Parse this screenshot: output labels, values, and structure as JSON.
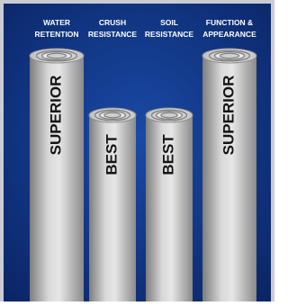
{
  "columns": [
    {
      "header": [
        "WATER",
        "RETENTION"
      ],
      "label": "SUPERIOR"
    },
    {
      "header": [
        "CRUSH",
        "RESISTANCE"
      ],
      "label": "BEST"
    },
    {
      "header": [
        "SOIL",
        "RESISTANCE"
      ],
      "label": "BEST"
    },
    {
      "header": [
        "FUNCTION &",
        "APPEARANCE"
      ],
      "label": "SUPERIOR"
    }
  ]
}
